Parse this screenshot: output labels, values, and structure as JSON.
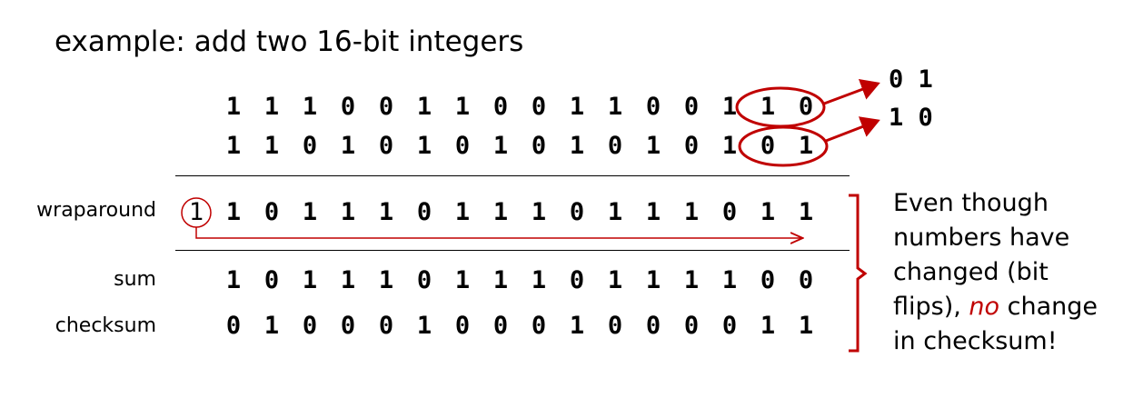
{
  "title": "example: add two 16-bit integers",
  "rows": {
    "a": {
      "label": "",
      "bits": [
        "1",
        "1",
        "1",
        "0",
        "0",
        "1",
        "1",
        "0",
        "0",
        "1",
        "1",
        "0",
        "0",
        "1",
        "1",
        "0"
      ]
    },
    "b": {
      "label": "",
      "bits": [
        "1",
        "1",
        "0",
        "1",
        "0",
        "1",
        "0",
        "1",
        "0",
        "1",
        "0",
        "1",
        "0",
        "1",
        "0",
        "1"
      ]
    },
    "wraparound": {
      "label": "wraparound",
      "carry": "1",
      "bits": [
        "1",
        "0",
        "1",
        "1",
        "1",
        "0",
        "1",
        "1",
        "1",
        "0",
        "1",
        "1",
        "1",
        "0",
        "1",
        "1"
      ]
    },
    "sum": {
      "label": "sum",
      "bits": [
        "1",
        "0",
        "1",
        "1",
        "1",
        "0",
        "1",
        "1",
        "1",
        "0",
        "1",
        "1",
        "1",
        "1",
        "0",
        "0"
      ]
    },
    "checksum": {
      "label": "checksum",
      "bits": [
        "0",
        "1",
        "0",
        "0",
        "0",
        "1",
        "0",
        "0",
        "0",
        "1",
        "0",
        "0",
        "0",
        "0",
        "1",
        "1"
      ]
    }
  },
  "flips": {
    "top": "0 1",
    "bottom": "1 0"
  },
  "note": {
    "line1": "Even though",
    "line2": "numbers have",
    "line3": "changed (bit",
    "line4_pre": "flips), ",
    "line4_em": "no",
    "line4_post": " change",
    "line5": "in checksum!"
  },
  "colors": {
    "accent": "#c00000",
    "text": "#000000"
  }
}
